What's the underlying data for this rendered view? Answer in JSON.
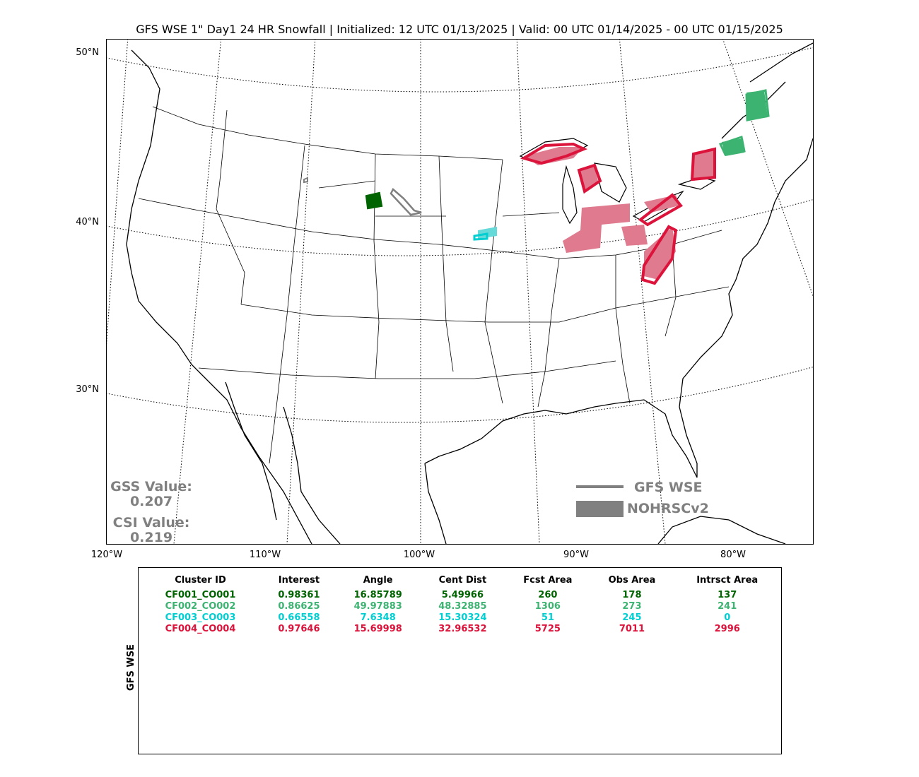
{
  "title": "GFS WSE 1\" Day1 24 HR Snowfall | Initialized: 12 UTC 01/13/2025 | Valid: 00 UTC 01/14/2025 - 00 UTC 01/15/2025",
  "map": {
    "lat_labels": [
      "50°N",
      "40°N",
      "30°N"
    ],
    "lon_labels": [
      "120°W",
      "110°W",
      "100°W",
      "90°W",
      "80°W"
    ],
    "colors": {
      "cluster1": "#006400",
      "cluster2": "#3cb371",
      "cluster3": "#00ced1",
      "cluster4": "#dc143c",
      "forecast_outline": "#808080",
      "obs_fill_pink": "#e07a8e",
      "obs_fill_cyan": "#66d9d9",
      "obs_fill_green": "#3cb371"
    }
  },
  "scores": {
    "gss_label": "GSS Value:",
    "gss_value": "0.207",
    "csi_label": "CSI Value:",
    "csi_value": "0.219"
  },
  "legend": {
    "forecast_label": "GFS WSE",
    "observed_label": "NOHRSCv2"
  },
  "table": {
    "side_label": "GFS WSE",
    "headers": [
      "Cluster ID",
      "Interest",
      "Angle",
      "Cent Dist",
      "Fcst Area",
      "Obs Area",
      "Intrsct Area"
    ],
    "rows": [
      {
        "color": "#006400",
        "cells": [
          "CF001_CO001",
          "0.98361",
          "16.85789",
          "5.49966",
          "260",
          "178",
          "137"
        ]
      },
      {
        "color": "#3cb371",
        "cells": [
          "CF002_CO002",
          "0.86625",
          "49.97883",
          "48.32885",
          "1306",
          "273",
          "241"
        ]
      },
      {
        "color": "#00ced1",
        "cells": [
          "CF003_CO003",
          "0.66558",
          "7.6348",
          "15.30324",
          "51",
          "245",
          "0"
        ]
      },
      {
        "color": "#dc143c",
        "cells": [
          "CF004_CO004",
          "0.97646",
          "15.69998",
          "32.96532",
          "5725",
          "7011",
          "2996"
        ]
      }
    ]
  }
}
